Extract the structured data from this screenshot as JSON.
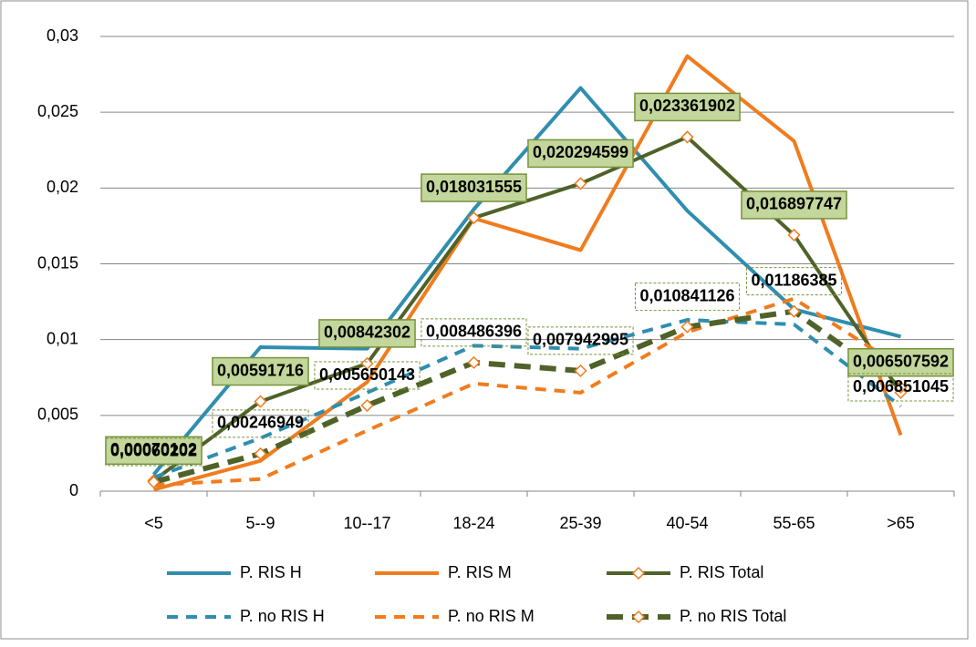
{
  "chart_data": {
    "type": "line",
    "categories": [
      "<5",
      "5--9",
      "10--17",
      "18-24",
      "25-39",
      "40-54",
      "55-65",
      ">65"
    ],
    "ylim": [
      0,
      0.03
    ],
    "yticks": [
      0,
      {
        "value": 0.005,
        "label": "0,005"
      },
      {
        "value": 0.01,
        "label": "0,01"
      },
      {
        "value": 0.015,
        "label": "0,015"
      },
      {
        "value": 0.02,
        "label": "0,02"
      },
      {
        "value": 0.025,
        "label": "0,025"
      },
      {
        "value": 0.03,
        "label": "0,03"
      }
    ],
    "grid": true,
    "legend": "bottom",
    "series": [
      {
        "name": "P. RIS H",
        "color": "#2f8eb0",
        "dashed": false,
        "values": [
          0.0011,
          0.0095,
          0.0094,
          0.0186,
          0.0266,
          0.0185,
          0.012,
          0.0102
        ]
      },
      {
        "name": "P. RIS M",
        "color": "#f07c1e",
        "dashed": false,
        "values": [
          0.0001,
          0.002,
          0.0072,
          0.018,
          0.0159,
          0.0287,
          0.0231,
          0.0037
        ]
      },
      {
        "name": "P. RIS Total",
        "color": "#4f6228",
        "dashed": false,
        "markers": true,
        "values": [
          0.00070102,
          0.00591716,
          0.00842302,
          0.018031555,
          0.020294599,
          0.023361902,
          0.016897747,
          0.006507592
        ],
        "value_labels": [
          "0,00070102",
          "0,00591716",
          "0,00842302",
          "0,018031555",
          "0,020294599",
          "0,023361902",
          "0,016897747",
          "0,006507592"
        ]
      },
      {
        "name": "P. no RIS H",
        "color": "#2f8eb0",
        "dashed": true,
        "values": [
          0.0009,
          0.0035,
          0.0065,
          0.0096,
          0.0094,
          0.0113,
          0.011,
          0.0056
        ]
      },
      {
        "name": "P. no RIS M",
        "color": "#f07c1e",
        "dashed": true,
        "values": [
          0.0004,
          0.0008,
          0.004,
          0.0071,
          0.0065,
          0.0105,
          0.0127,
          0.0082
        ]
      },
      {
        "name": "P. no RIS Total",
        "color": "#4f6228",
        "dashed": true,
        "markers": true,
        "values": [
          0.00060202,
          0.00246949,
          0.005650143,
          0.008486396,
          0.007942995,
          0.010841126,
          0.01186385,
          0.006851045
        ],
        "value_labels": [
          "0,00060202",
          "0,00246949",
          "0,005650143",
          "0,008486396",
          "0,007942995",
          "0,010841126",
          "0,01186385",
          "0,006851045"
        ]
      }
    ]
  }
}
